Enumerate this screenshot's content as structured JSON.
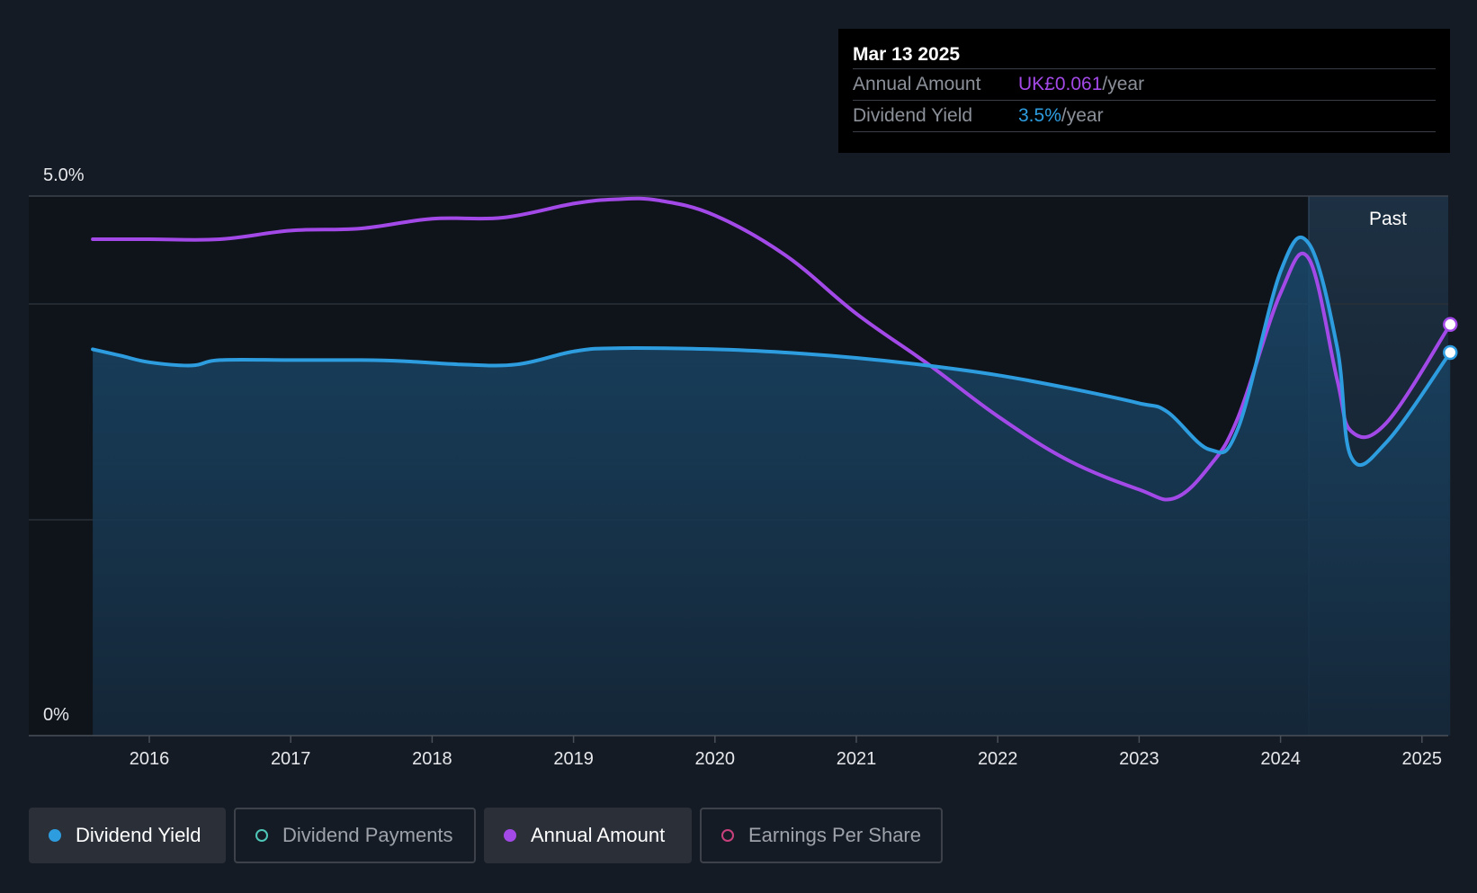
{
  "chart_data": {
    "type": "line",
    "x_axis": {
      "ticks": [
        "2016",
        "2017",
        "2018",
        "2019",
        "2020",
        "2021",
        "2022",
        "2023",
        "2024",
        "2025"
      ],
      "range": [
        2015.55,
        2025.2
      ]
    },
    "y_axis": {
      "tick_labels": [
        "5.0%",
        "0%"
      ],
      "range_percent": [
        0,
        5.0
      ],
      "gridlines_percent": [
        0,
        2.0,
        4.0,
        5.0
      ]
    },
    "region_label": "Past",
    "past_region_start": 2024.2,
    "series": [
      {
        "name": "Dividend Yield",
        "color": "#2d9de0",
        "filled": true,
        "points": [
          [
            2015.6,
            3.58
          ],
          [
            2015.8,
            3.52
          ],
          [
            2016.0,
            3.46
          ],
          [
            2016.3,
            3.43
          ],
          [
            2016.5,
            3.48
          ],
          [
            2017.0,
            3.48
          ],
          [
            2017.5,
            3.48
          ],
          [
            2017.8,
            3.47
          ],
          [
            2018.2,
            3.44
          ],
          [
            2018.6,
            3.44
          ],
          [
            2019.0,
            3.56
          ],
          [
            2019.3,
            3.59
          ],
          [
            2020.0,
            3.58
          ],
          [
            2020.5,
            3.55
          ],
          [
            2021.0,
            3.5
          ],
          [
            2021.5,
            3.43
          ],
          [
            2022.0,
            3.34
          ],
          [
            2022.5,
            3.22
          ],
          [
            2023.0,
            3.08
          ],
          [
            2023.2,
            3.0
          ],
          [
            2023.5,
            2.65
          ],
          [
            2023.7,
            2.85
          ],
          [
            2024.0,
            4.3
          ],
          [
            2024.2,
            4.56
          ],
          [
            2024.4,
            3.6
          ],
          [
            2024.5,
            2.58
          ],
          [
            2024.75,
            2.72
          ],
          [
            2025.2,
            3.55
          ]
        ]
      },
      {
        "name": "Annual Amount",
        "color": "#a349e8",
        "filled": false,
        "points": [
          [
            2015.6,
            4.6
          ],
          [
            2016.0,
            4.6
          ],
          [
            2016.5,
            4.6
          ],
          [
            2017.0,
            4.68
          ],
          [
            2017.5,
            4.7
          ],
          [
            2018.0,
            4.79
          ],
          [
            2018.5,
            4.8
          ],
          [
            2019.0,
            4.93
          ],
          [
            2019.3,
            4.97
          ],
          [
            2019.6,
            4.96
          ],
          [
            2020.0,
            4.82
          ],
          [
            2020.5,
            4.45
          ],
          [
            2021.0,
            3.91
          ],
          [
            2021.5,
            3.45
          ],
          [
            2022.0,
            2.96
          ],
          [
            2022.5,
            2.55
          ],
          [
            2023.0,
            2.28
          ],
          [
            2023.25,
            2.2
          ],
          [
            2023.5,
            2.5
          ],
          [
            2023.7,
            2.95
          ],
          [
            2024.0,
            4.1
          ],
          [
            2024.2,
            4.42
          ],
          [
            2024.4,
            3.3
          ],
          [
            2024.5,
            2.82
          ],
          [
            2024.75,
            2.9
          ],
          [
            2025.2,
            3.81
          ]
        ]
      }
    ]
  },
  "tooltip": {
    "date": "Mar 13 2025",
    "rows": [
      {
        "label": "Annual Amount",
        "value": "UK£0.061",
        "unit": "/year",
        "color": "#a349e8"
      },
      {
        "label": "Dividend Yield",
        "value": "3.5%",
        "unit": "/year",
        "color": "#2d9de0"
      }
    ]
  },
  "legend": [
    {
      "label": "Dividend Yield",
      "active": true,
      "dot_color": "#2d9de0",
      "dot_style": "filled"
    },
    {
      "label": "Dividend Payments",
      "active": false,
      "dot_color": "#4fc7b8",
      "dot_style": "outline"
    },
    {
      "label": "Annual Amount",
      "active": true,
      "dot_color": "#a349e8",
      "dot_style": "filled"
    },
    {
      "label": "Earnings Per Share",
      "active": false,
      "dot_color": "#c8417e",
      "dot_style": "outline"
    }
  ]
}
